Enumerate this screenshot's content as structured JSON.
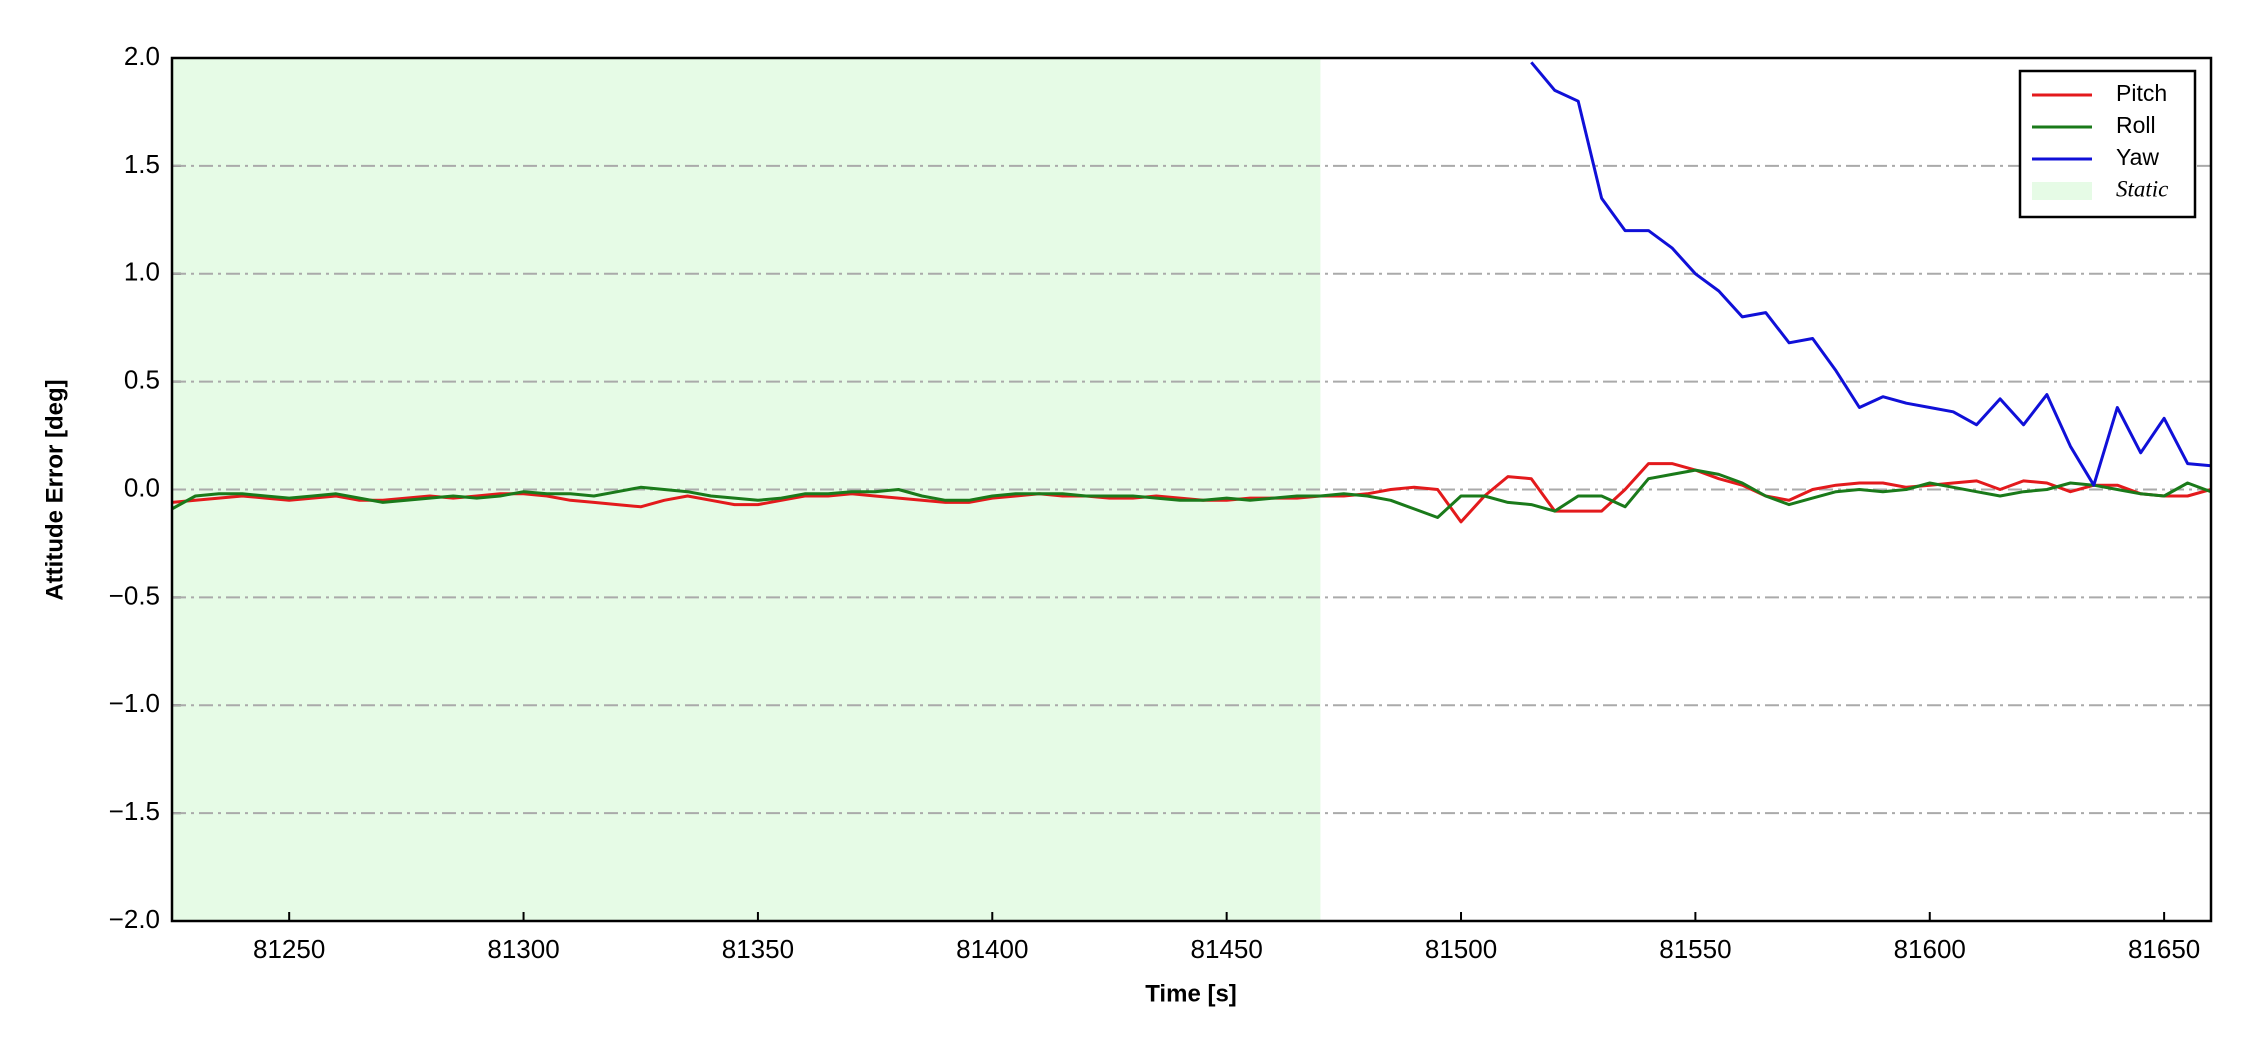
{
  "chart_data": {
    "type": "line",
    "xlabel": "Time [s]",
    "ylabel": "Attitude Error [deg]",
    "xlim": [
      81225,
      81660
    ],
    "xticks": [
      81250,
      81300,
      81350,
      81400,
      81450,
      81500,
      81550,
      81600,
      81650
    ],
    "ylim": [
      -2,
      2
    ],
    "yticks": [
      {
        "value": -2,
        "label": "−2.0"
      },
      {
        "value": -1.5,
        "label": "−1.5"
      },
      {
        "value": -1,
        "label": "−1.0"
      },
      {
        "value": -0.5,
        "label": "−0.5"
      },
      {
        "value": 0,
        "label": "0.0"
      },
      0.5,
      {
        "value": 1,
        "label": "1.0"
      },
      1.5,
      {
        "value": 2,
        "label": "2.0"
      }
    ],
    "grid": true,
    "legend": "upper right",
    "spans": [
      {
        "name": "Static",
        "x0": 81225,
        "x1": 81470,
        "color": "#e6fbe6"
      }
    ],
    "x": [
      81225,
      81230,
      81235,
      81240,
      81245,
      81250,
      81255,
      81260,
      81265,
      81270,
      81275,
      81280,
      81285,
      81290,
      81295,
      81300,
      81305,
      81310,
      81315,
      81320,
      81325,
      81330,
      81335,
      81340,
      81345,
      81350,
      81355,
      81360,
      81365,
      81370,
      81375,
      81380,
      81385,
      81390,
      81395,
      81400,
      81405,
      81410,
      81415,
      81420,
      81425,
      81430,
      81435,
      81440,
      81445,
      81450,
      81455,
      81460,
      81465,
      81470,
      81475,
      81480,
      81485,
      81490,
      81495,
      81500,
      81505,
      81510,
      81515,
      81520,
      81525,
      81530,
      81535,
      81540,
      81545,
      81550,
      81555,
      81560,
      81565,
      81570,
      81575,
      81580,
      81585,
      81590,
      81595,
      81600,
      81605,
      81610,
      81615,
      81620,
      81625,
      81630,
      81635,
      81640,
      81645,
      81650,
      81655,
      81660
    ],
    "series": [
      {
        "name": "Pitch",
        "color": "#e31a1c",
        "values": [
          -0.06,
          -0.05,
          -0.04,
          -0.03,
          -0.04,
          -0.05,
          -0.04,
          -0.03,
          -0.05,
          -0.05,
          -0.04,
          -0.03,
          -0.04,
          -0.03,
          -0.02,
          -0.02,
          -0.03,
          -0.05,
          -0.06,
          -0.07,
          -0.08,
          -0.05,
          -0.03,
          -0.05,
          -0.07,
          -0.07,
          -0.05,
          -0.03,
          -0.03,
          -0.02,
          -0.03,
          -0.04,
          -0.05,
          -0.06,
          -0.06,
          -0.04,
          -0.03,
          -0.02,
          -0.03,
          -0.03,
          -0.04,
          -0.04,
          -0.03,
          -0.04,
          -0.05,
          -0.05,
          -0.04,
          -0.04,
          -0.04,
          -0.03,
          -0.03,
          -0.02,
          0.0,
          0.01,
          0.0,
          -0.15,
          -0.03,
          0.06,
          0.05,
          -0.1,
          -0.1,
          -0.1,
          0.0,
          0.12,
          0.12,
          0.09,
          0.05,
          0.02,
          -0.03,
          -0.05,
          0.0,
          0.02,
          0.03,
          0.03,
          0.01,
          0.02,
          0.03,
          0.04,
          0.0,
          0.04,
          0.03,
          -0.01,
          0.02,
          0.02,
          -0.02,
          -0.03,
          -0.03,
          0.0
        ]
      },
      {
        "name": "Roll",
        "color": "#1a7a1a",
        "values": [
          -0.09,
          -0.03,
          -0.02,
          -0.02,
          -0.03,
          -0.04,
          -0.03,
          -0.02,
          -0.04,
          -0.06,
          -0.05,
          -0.04,
          -0.03,
          -0.04,
          -0.03,
          -0.01,
          -0.02,
          -0.02,
          -0.03,
          -0.01,
          0.01,
          0.0,
          -0.01,
          -0.03,
          -0.04,
          -0.05,
          -0.04,
          -0.02,
          -0.02,
          -0.01,
          -0.01,
          0.0,
          -0.03,
          -0.05,
          -0.05,
          -0.03,
          -0.02,
          -0.02,
          -0.02,
          -0.03,
          -0.03,
          -0.03,
          -0.04,
          -0.05,
          -0.05,
          -0.04,
          -0.05,
          -0.04,
          -0.03,
          -0.03,
          -0.02,
          -0.03,
          -0.05,
          -0.09,
          -0.13,
          -0.03,
          -0.03,
          -0.06,
          -0.07,
          -0.1,
          -0.03,
          -0.03,
          -0.08,
          0.05,
          0.07,
          0.09,
          0.07,
          0.03,
          -0.03,
          -0.07,
          -0.04,
          -0.01,
          0.0,
          -0.01,
          0.0,
          0.03,
          0.01,
          -0.01,
          -0.03,
          -0.01,
          0.0,
          0.03,
          0.02,
          0.0,
          -0.02,
          -0.03,
          0.03,
          -0.01
        ]
      },
      {
        "name": "Yaw",
        "color": "#1010d8",
        "values": [
          null,
          null,
          null,
          null,
          null,
          null,
          null,
          null,
          null,
          null,
          null,
          null,
          null,
          null,
          null,
          null,
          null,
          null,
          null,
          null,
          null,
          null,
          null,
          null,
          null,
          null,
          null,
          null,
          null,
          null,
          null,
          null,
          null,
          null,
          null,
          null,
          null,
          null,
          null,
          null,
          null,
          null,
          null,
          null,
          null,
          null,
          null,
          null,
          null,
          null,
          null,
          null,
          null,
          null,
          null,
          null,
          null,
          null,
          1.98,
          1.85,
          1.8,
          1.35,
          1.2,
          1.2,
          1.12,
          1.0,
          0.92,
          0.8,
          0.82,
          0.68,
          0.7,
          0.55,
          0.38,
          0.43,
          0.4,
          0.38,
          0.36,
          0.3,
          0.42,
          0.3,
          0.44,
          0.2,
          0.02,
          0.38,
          0.17,
          0.33,
          0.12,
          0.11
        ]
      }
    ]
  }
}
